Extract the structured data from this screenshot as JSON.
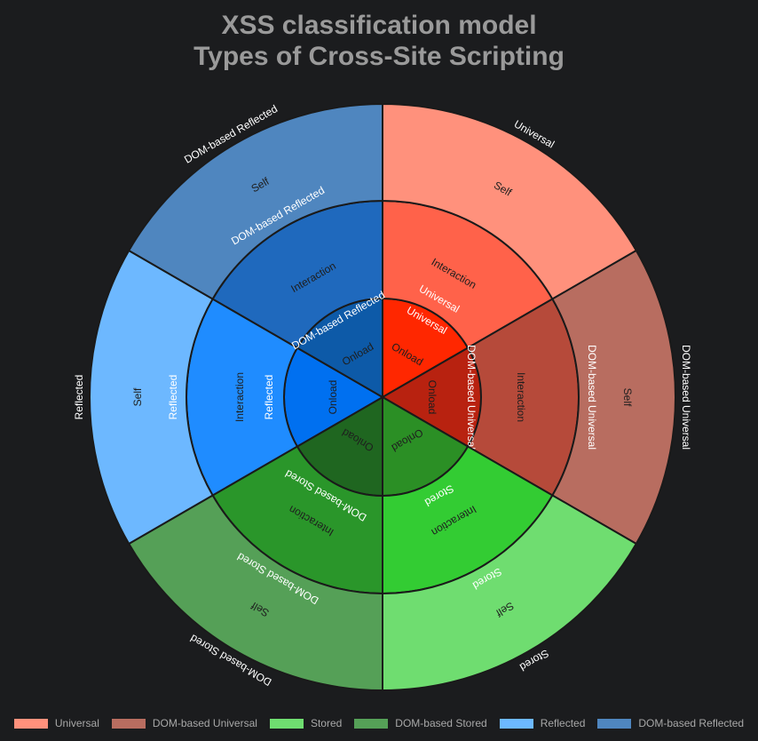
{
  "title_line1": "XSS classification model",
  "title_line2": "Types of Cross-Site Scripting",
  "sectors": [
    {
      "name": "Universal",
      "outer_label": "Universal",
      "colors": [
        "#ff2700",
        "#ff624a",
        "#ff917c"
      ],
      "rings": [
        {
          "label": "Onload",
          "category": "Universal",
          "text_color": "#1e1e1e",
          "cat_color": "#ffffff"
        },
        {
          "label": "Interaction",
          "category": "Universal",
          "text_color": "#1e1e1e",
          "cat_color": "#ffffff"
        },
        {
          "label": "Self",
          "category": "",
          "text_color": "#1e1e1e"
        }
      ]
    },
    {
      "name": "DOM-based Universal",
      "outer_label": "DOM-based Universal",
      "colors": [
        "#b82210",
        "#b64a3a",
        "#b86d60"
      ],
      "rings": [
        {
          "label": "Onload",
          "category": "DOM-based Universal",
          "text_color": "#1e1e1e",
          "cat_color": "#ffffff"
        },
        {
          "label": "Interaction",
          "category": "",
          "text_color": "#1e1e1e"
        },
        {
          "label": "Self",
          "category": "DOM-based Universal",
          "text_color": "#1e1e1e",
          "cat_color": "#ffffff"
        }
      ]
    },
    {
      "name": "Stored",
      "outer_label": "Stored",
      "colors": [
        "#2b8f25",
        "#33cc33",
        "#6fdd70"
      ],
      "rings": [
        {
          "label": "Onload",
          "category": "",
          "text_color": "#1e1e1e"
        },
        {
          "label": "Interaction",
          "category": "Stored",
          "text_color": "#1e1e1e",
          "cat_color": "#ffffff"
        },
        {
          "label": "Self",
          "category": "Stored",
          "text_color": "#1e1e1e",
          "cat_color": "#ffffff"
        }
      ]
    },
    {
      "name": "DOM-based Stored",
      "outer_label": "DOM-based Stored",
      "colors": [
        "#1f6620",
        "#2a962a",
        "#55a057"
      ],
      "rings": [
        {
          "label": "Onload",
          "category": "",
          "text_color": "#1e1e1e"
        },
        {
          "label": "Interaction",
          "category": "DOM-based Stored",
          "text_color": "#1e1e1e",
          "cat_color": "#ffffff"
        },
        {
          "label": "Self",
          "category": "DOM-based Stored",
          "text_color": "#1e1e1e",
          "cat_color": "#ffffff"
        }
      ]
    },
    {
      "name": "Reflected",
      "outer_label": "Reflected",
      "colors": [
        "#0070f0",
        "#1f8cff",
        "#6db8ff"
      ],
      "rings": [
        {
          "label": "Onload",
          "category": "",
          "text_color": "#1e1e1e"
        },
        {
          "label": "Interaction",
          "category": "Reflected",
          "text_color": "#1e1e1e",
          "cat_color": "#ffffff"
        },
        {
          "label": "Self",
          "category": "Reflected",
          "text_color": "#1e1e1e",
          "cat_color": "#ffffff"
        }
      ]
    },
    {
      "name": "DOM-based Reflected",
      "outer_label": "DOM-based Reflected",
      "colors": [
        "#0d5aa8",
        "#1f69bd",
        "#4f86bf"
      ],
      "rings": [
        {
          "label": "Onload",
          "category": "DOM-based Reflected",
          "text_color": "#1e1e1e",
          "cat_color": "#ffffff"
        },
        {
          "label": "Interaction",
          "category": "",
          "text_color": "#1e1e1e"
        },
        {
          "label": "Self",
          "category": "DOM-based Reflected",
          "text_color": "#1e1e1e",
          "cat_color": "#ffffff"
        }
      ]
    }
  ],
  "legend": [
    {
      "label": "Universal",
      "color": "#ff917c"
    },
    {
      "label": "DOM-based Universal",
      "color": "#b86d60"
    },
    {
      "label": "Stored",
      "color": "#6fdd70"
    },
    {
      "label": "DOM-based Stored",
      "color": "#55a057"
    },
    {
      "label": "Reflected",
      "color": "#6db8ff"
    },
    {
      "label": "DOM-based Reflected",
      "color": "#4f86bf"
    }
  ]
}
